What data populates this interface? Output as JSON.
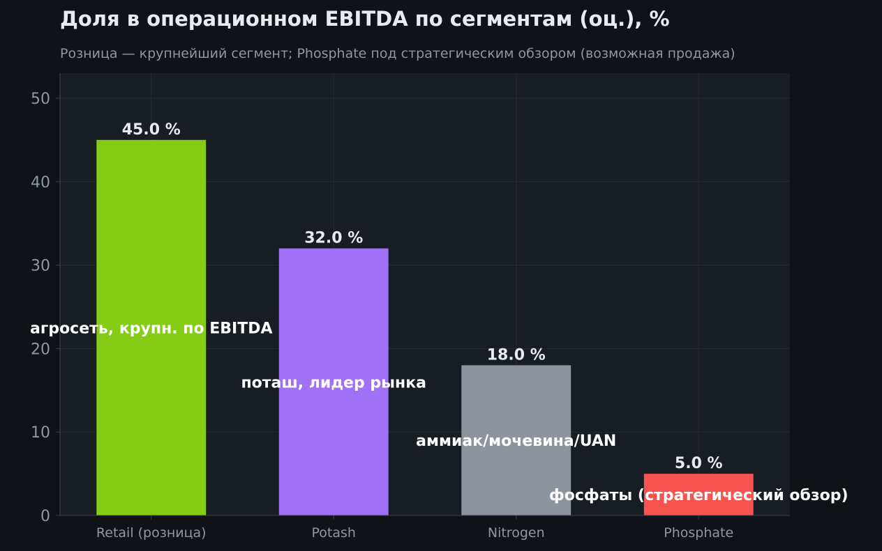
{
  "title": "Доля в операционном EBITDA по сегментам (оц.), %",
  "subtitle": "Розница — крупнейший сегмент; Phosphate под стратегическим обзором (возможная продажа)",
  "colors": {
    "background": "#0f1317",
    "plot_background": "#181c23",
    "grid": "#262b33",
    "text": "#e8ecf1",
    "muted": "#8f97a3"
  },
  "chart_data": {
    "type": "bar",
    "title": "Доля в операционном EBITDA по сегментам (оц.), %",
    "subtitle": "Розница — крупнейший сегмент; Phosphate под стратегическим обзором (возможная продажа)",
    "xlabel": "",
    "ylabel": "",
    "ylim": [
      0,
      53
    ],
    "yticks": [
      0,
      10,
      20,
      30,
      40,
      50
    ],
    "grid": true,
    "categories": [
      "Retail (розница)",
      "Potash",
      "Nitrogen",
      "Phosphate"
    ],
    "values": [
      45.0,
      32.0,
      18.0,
      5.0
    ],
    "value_labels": [
      "45.0 %",
      "32.0 %",
      "18.0 %",
      "5.0 %"
    ],
    "bar_colors": [
      "#84cc16",
      "#a071f7",
      "#8d949e",
      "#f55450"
    ],
    "annotations": [
      {
        "text": "агросеть, крупн. по EBITDA",
        "category": "Retail (розница)",
        "y": 22.5
      },
      {
        "text": "поташ, лидер рынка",
        "category": "Potash",
        "y": 16.0
      },
      {
        "text": "аммиак/мочевина/UAN",
        "category": "Nitrogen",
        "y": 9.0
      },
      {
        "text": "фосфаты (стратегический обзор)",
        "category": "Phosphate",
        "y": 2.5
      }
    ]
  }
}
